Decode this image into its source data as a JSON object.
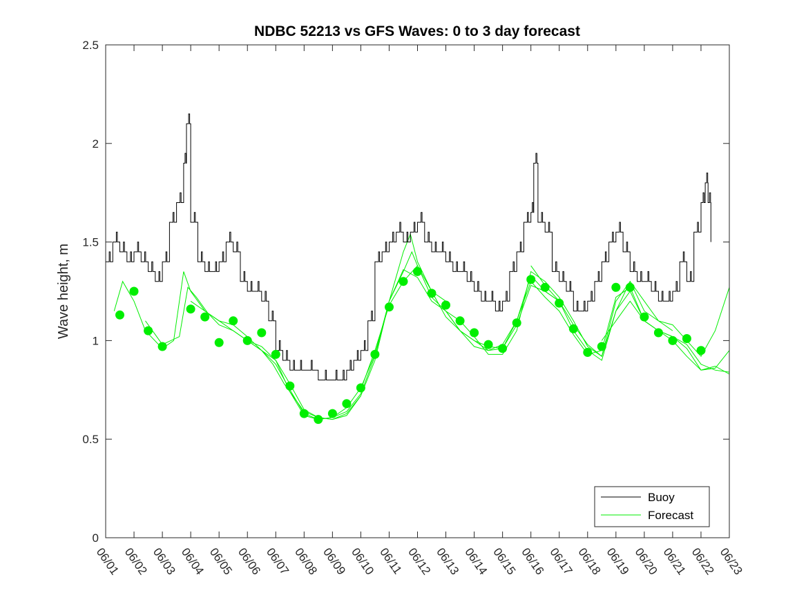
{
  "chart_data": {
    "type": "line",
    "title": "NDBC 52213 vs GFS Waves: 0 to 3 day forecast",
    "xlabel": "",
    "ylabel": "Wave height, m",
    "xlim": [
      1,
      23
    ],
    "ylim": [
      0,
      2.5
    ],
    "x_tick_labels": [
      "06/01",
      "06/02",
      "06/03",
      "06/04",
      "06/05",
      "06/06",
      "06/07",
      "06/08",
      "06/09",
      "06/10",
      "06/11",
      "06/12",
      "06/13",
      "06/14",
      "06/15",
      "06/16",
      "06/17",
      "06/18",
      "06/19",
      "06/20",
      "06/21",
      "06/22",
      "06/23"
    ],
    "y_ticks": [
      0,
      0.5,
      1,
      1.5,
      2,
      2.5
    ],
    "y_tick_labels": [
      "0",
      "0.5",
      "1",
      "1.5",
      "2",
      "2.5"
    ],
    "grid": false,
    "legend": {
      "position": "bottom-right",
      "entries": [
        "Buoy",
        "Forecast"
      ]
    },
    "colors": {
      "buoy": "#000000",
      "forecast": "#00ee00",
      "marker": "#00ee00"
    },
    "buoy": {
      "name": "Buoy",
      "x": [
        1.0,
        1.25,
        1.5,
        1.75,
        2.0,
        2.25,
        2.5,
        2.75,
        3.0,
        3.25,
        3.5,
        3.75,
        3.85,
        4.0,
        4.25,
        4.5,
        4.75,
        5.0,
        5.25,
        5.5,
        5.75,
        6.0,
        6.25,
        6.5,
        6.75,
        7.0,
        7.25,
        7.5,
        7.75,
        8.0,
        8.5,
        9.0,
        9.25,
        9.5,
        9.75,
        10.0,
        10.25,
        10.5,
        10.75,
        11.0,
        11.25,
        11.5,
        11.75,
        12.0,
        12.25,
        12.5,
        12.75,
        13.0,
        13.25,
        13.5,
        13.75,
        14.0,
        14.25,
        14.5,
        14.75,
        15.0,
        15.25,
        15.5,
        15.75,
        16.0,
        16.1,
        16.25,
        16.5,
        16.75,
        17.0,
        17.25,
        17.5,
        17.75,
        18.0,
        18.25,
        18.5,
        18.75,
        19.0,
        19.25,
        19.5,
        19.75,
        20.0,
        20.25,
        20.5,
        20.75,
        21.0,
        21.25,
        21.5,
        21.75,
        22.0,
        22.15,
        22.25,
        22.35
      ],
      "y": [
        1.4,
        1.5,
        1.45,
        1.4,
        1.45,
        1.4,
        1.35,
        1.3,
        1.4,
        1.6,
        1.7,
        1.9,
        2.1,
        1.6,
        1.4,
        1.35,
        1.35,
        1.4,
        1.5,
        1.45,
        1.3,
        1.25,
        1.25,
        1.2,
        1.1,
        0.95,
        0.9,
        0.85,
        0.85,
        0.85,
        0.8,
        0.8,
        0.8,
        0.85,
        0.9,
        0.95,
        1.1,
        1.4,
        1.45,
        1.5,
        1.55,
        1.5,
        1.55,
        1.6,
        1.5,
        1.45,
        1.45,
        1.4,
        1.35,
        1.35,
        1.3,
        1.25,
        1.2,
        1.2,
        1.15,
        1.2,
        1.35,
        1.45,
        1.6,
        1.65,
        1.9,
        1.6,
        1.55,
        1.35,
        1.3,
        1.25,
        1.15,
        1.15,
        1.2,
        1.3,
        1.4,
        1.5,
        1.55,
        1.45,
        1.35,
        1.3,
        1.3,
        1.25,
        1.2,
        1.2,
        1.25,
        1.4,
        1.3,
        1.55,
        1.7,
        1.8,
        1.7,
        1.5
      ]
    },
    "forecast_runs": [
      {
        "x": [
          1.3,
          1.6,
          2.0,
          2.4,
          3.0,
          3.4,
          3.75,
          4.0,
          4.5,
          5.0,
          5.5,
          6.0,
          6.5,
          6.9,
          7.3,
          8.0,
          8.5,
          9.0,
          9.5,
          10.0
        ],
        "y": [
          1.15,
          1.3,
          1.2,
          1.05,
          0.96,
          1.0,
          1.35,
          1.25,
          1.15,
          1.1,
          1.08,
          1.02,
          0.95,
          0.88,
          0.78,
          0.64,
          0.61,
          0.6,
          0.62,
          0.72
        ]
      },
      {
        "x": [
          2.4,
          3.0,
          3.6,
          3.9,
          4.2,
          4.6,
          5.0,
          5.5,
          6.0,
          6.5,
          7.0,
          7.5,
          8.0,
          8.5,
          9.0,
          9.5,
          10.0,
          10.5,
          11.0,
          11.5,
          11.75,
          12.0,
          12.5,
          13.0
        ],
        "y": [
          1.1,
          0.98,
          1.02,
          1.27,
          1.22,
          1.14,
          1.08,
          1.05,
          1.0,
          0.97,
          0.9,
          0.78,
          0.65,
          0.61,
          0.6,
          0.63,
          0.72,
          0.9,
          1.2,
          1.45,
          1.54,
          1.4,
          1.25,
          1.2
        ]
      },
      {
        "x": [
          4.0,
          4.5,
          5.0,
          5.5,
          6.0,
          6.5,
          7.0,
          7.5,
          8.0,
          8.5,
          9.0,
          9.5,
          10.0,
          10.5,
          11.0,
          11.5,
          11.8,
          12.0,
          12.5,
          13.0,
          13.5,
          14.0,
          14.5,
          15.0,
          15.5,
          16.0,
          16.5,
          17.0
        ],
        "y": [
          1.2,
          1.15,
          1.1,
          1.05,
          1.0,
          0.95,
          0.88,
          0.75,
          0.63,
          0.6,
          0.61,
          0.66,
          0.76,
          0.93,
          1.2,
          1.35,
          1.45,
          1.38,
          1.22,
          1.15,
          1.05,
          1.0,
          0.95,
          0.98,
          1.1,
          1.33,
          1.25,
          1.2
        ]
      },
      {
        "x": [
          6.0,
          6.5,
          7.0,
          7.5,
          8.0,
          8.5,
          9.0,
          9.5,
          10.0,
          10.5,
          11.0,
          11.5,
          12.0,
          12.5,
          13.0,
          13.5,
          14.0,
          14.5,
          15.0,
          15.5,
          16.0,
          16.5,
          17.0,
          17.5,
          18.0,
          18.5,
          19.0,
          19.5,
          20.0,
          20.5,
          21.0
        ],
        "y": [
          1.0,
          0.95,
          0.9,
          0.74,
          0.62,
          0.6,
          0.61,
          0.64,
          0.73,
          0.92,
          1.2,
          1.36,
          1.32,
          1.2,
          1.15,
          1.05,
          0.97,
          0.95,
          0.96,
          1.08,
          1.28,
          1.25,
          1.2,
          1.05,
          0.95,
          0.9,
          1.15,
          1.3,
          1.2,
          1.1,
          1.05
        ]
      },
      {
        "x": [
          10.0,
          10.5,
          11.0,
          11.5,
          12.0,
          12.5,
          13.0,
          13.5,
          14.0,
          14.5,
          15.0,
          15.5,
          16.0,
          16.5,
          17.0,
          17.5,
          18.0,
          18.5,
          19.0,
          19.5,
          20.0,
          20.5,
          21.0,
          21.5,
          22.0,
          22.5,
          23.0
        ],
        "y": [
          0.75,
          0.95,
          1.18,
          1.3,
          1.38,
          1.25,
          1.12,
          1.05,
          1.0,
          0.97,
          0.96,
          1.1,
          1.3,
          1.22,
          1.15,
          1.03,
          0.93,
          0.95,
          1.22,
          1.27,
          1.1,
          1.05,
          1.0,
          0.92,
          0.85,
          0.87,
          0.83
        ]
      },
      {
        "x": [
          13.0,
          13.5,
          14.0,
          14.5,
          15.0,
          15.5,
          16.0,
          16.5,
          17.0,
          17.5,
          18.0,
          18.5,
          19.0,
          19.5,
          20.0,
          20.5,
          21.0,
          21.5,
          22.0,
          22.5,
          23.0
        ],
        "y": [
          1.15,
          1.1,
          1.02,
          0.93,
          0.93,
          1.05,
          1.35,
          1.3,
          1.22,
          1.1,
          0.97,
          0.92,
          1.15,
          1.25,
          1.1,
          1.05,
          1.02,
          0.96,
          0.85,
          0.86,
          0.95
        ]
      },
      {
        "x": [
          16.0,
          16.5,
          17.0,
          17.5,
          18.0,
          18.5,
          19.0,
          19.5,
          20.0,
          20.5,
          21.0,
          21.5,
          22.0,
          22.5,
          23.0
        ],
        "y": [
          1.38,
          1.28,
          1.2,
          1.08,
          0.98,
          0.92,
          1.2,
          1.3,
          1.15,
          1.1,
          1.08,
          1.0,
          0.92,
          1.05,
          1.27
        ]
      },
      {
        "x": [
          18.5,
          19.0,
          19.5,
          20.0,
          20.5,
          21.0,
          21.5,
          22.0,
          22.5,
          23.0
        ],
        "y": [
          1.0,
          1.1,
          1.2,
          1.1,
          1.05,
          1.02,
          0.98,
          0.88,
          0.85,
          0.84
        ]
      }
    ],
    "forecast_markers": {
      "x": [
        1.5,
        2.0,
        2.5,
        3.0,
        4.0,
        4.5,
        5.0,
        5.5,
        6.0,
        6.5,
        7.0,
        7.5,
        8.0,
        8.5,
        9.0,
        9.5,
        10.0,
        10.5,
        11.0,
        11.5,
        12.0,
        12.5,
        13.0,
        13.5,
        14.0,
        14.5,
        15.0,
        15.5,
        16.0,
        16.5,
        17.0,
        17.5,
        18.0,
        18.5,
        19.0,
        19.5,
        20.0,
        20.5,
        21.0,
        21.5,
        22.0
      ],
      "y": [
        1.13,
        1.25,
        1.05,
        0.97,
        1.16,
        1.12,
        0.99,
        1.1,
        1.0,
        1.04,
        0.93,
        0.77,
        0.63,
        0.6,
        0.63,
        0.68,
        0.76,
        0.93,
        1.17,
        1.3,
        1.35,
        1.24,
        1.18,
        1.1,
        1.04,
        0.98,
        0.96,
        1.09,
        1.31,
        1.27,
        1.19,
        1.06,
        0.94,
        0.97,
        1.27,
        1.27,
        1.12,
        1.04,
        1.0,
        1.01,
        0.95
      ]
    }
  }
}
